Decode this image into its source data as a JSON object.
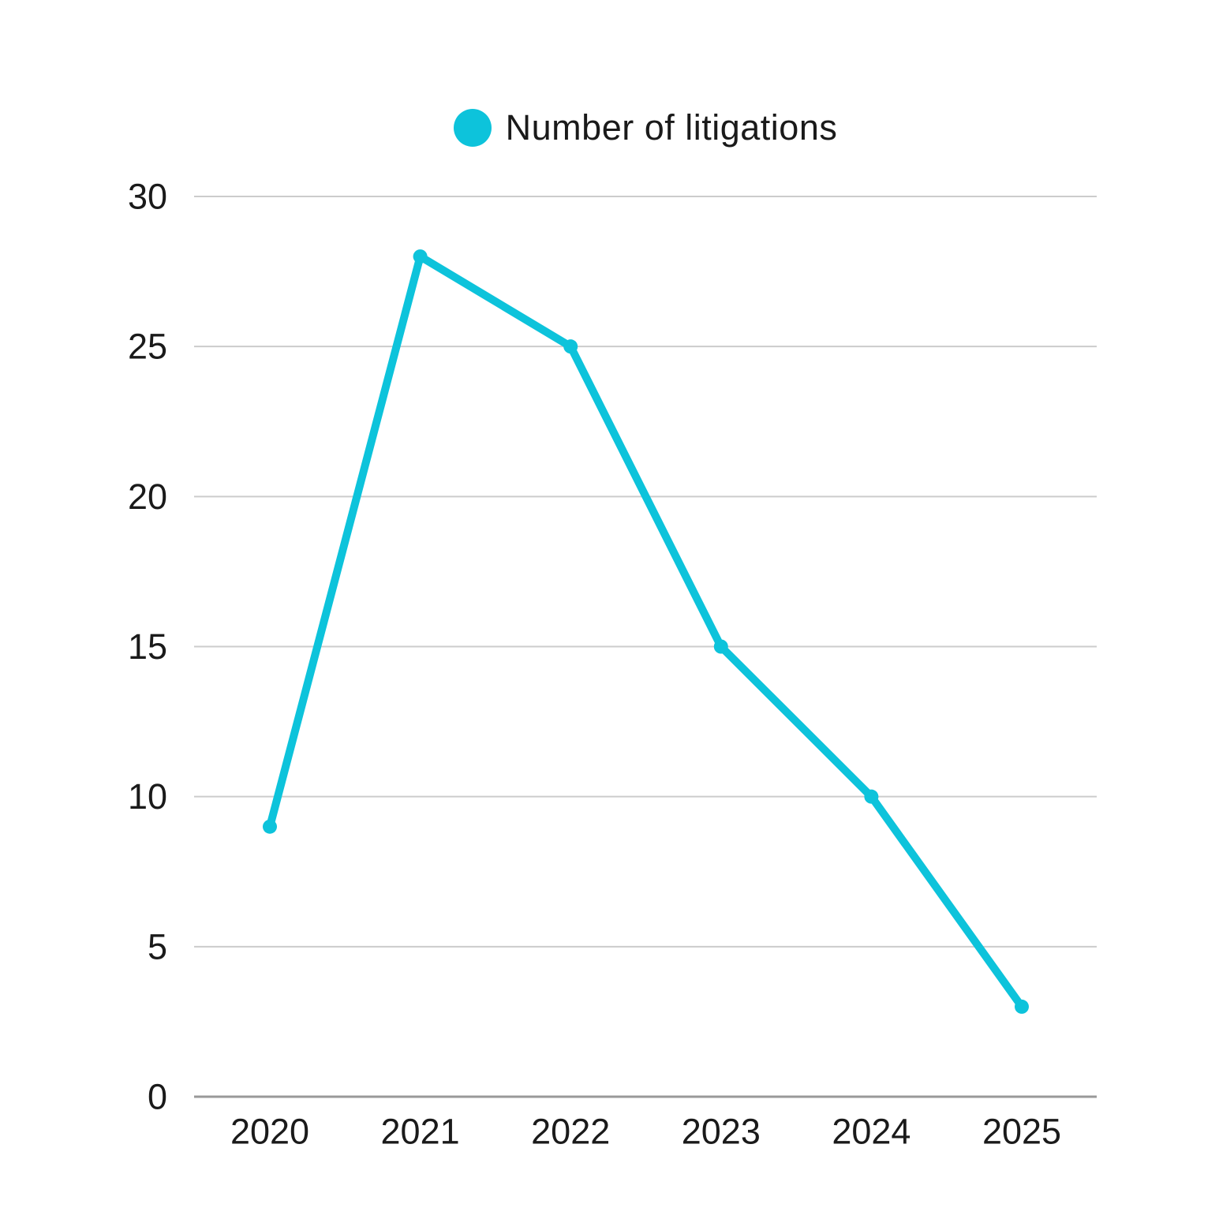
{
  "legend": {
    "label": "Number of litigations"
  },
  "chart_data": {
    "type": "line",
    "title": "",
    "xlabel": "",
    "ylabel": "",
    "categories": [
      "2020",
      "2021",
      "2022",
      "2023",
      "2024",
      "2025"
    ],
    "series": [
      {
        "name": "Number of litigations",
        "values": [
          9,
          28,
          25,
          15,
          10,
          3
        ],
        "color": "#0dc3db"
      }
    ],
    "ylim": [
      0,
      30
    ],
    "yticks": [
      0,
      5,
      10,
      15,
      20,
      25,
      30
    ],
    "grid": true,
    "legend_position": "top",
    "colors": {
      "grid": "#cccccc",
      "axis": "#999999",
      "tick_text": "#1a1a1a",
      "background": "#ffffff"
    }
  }
}
